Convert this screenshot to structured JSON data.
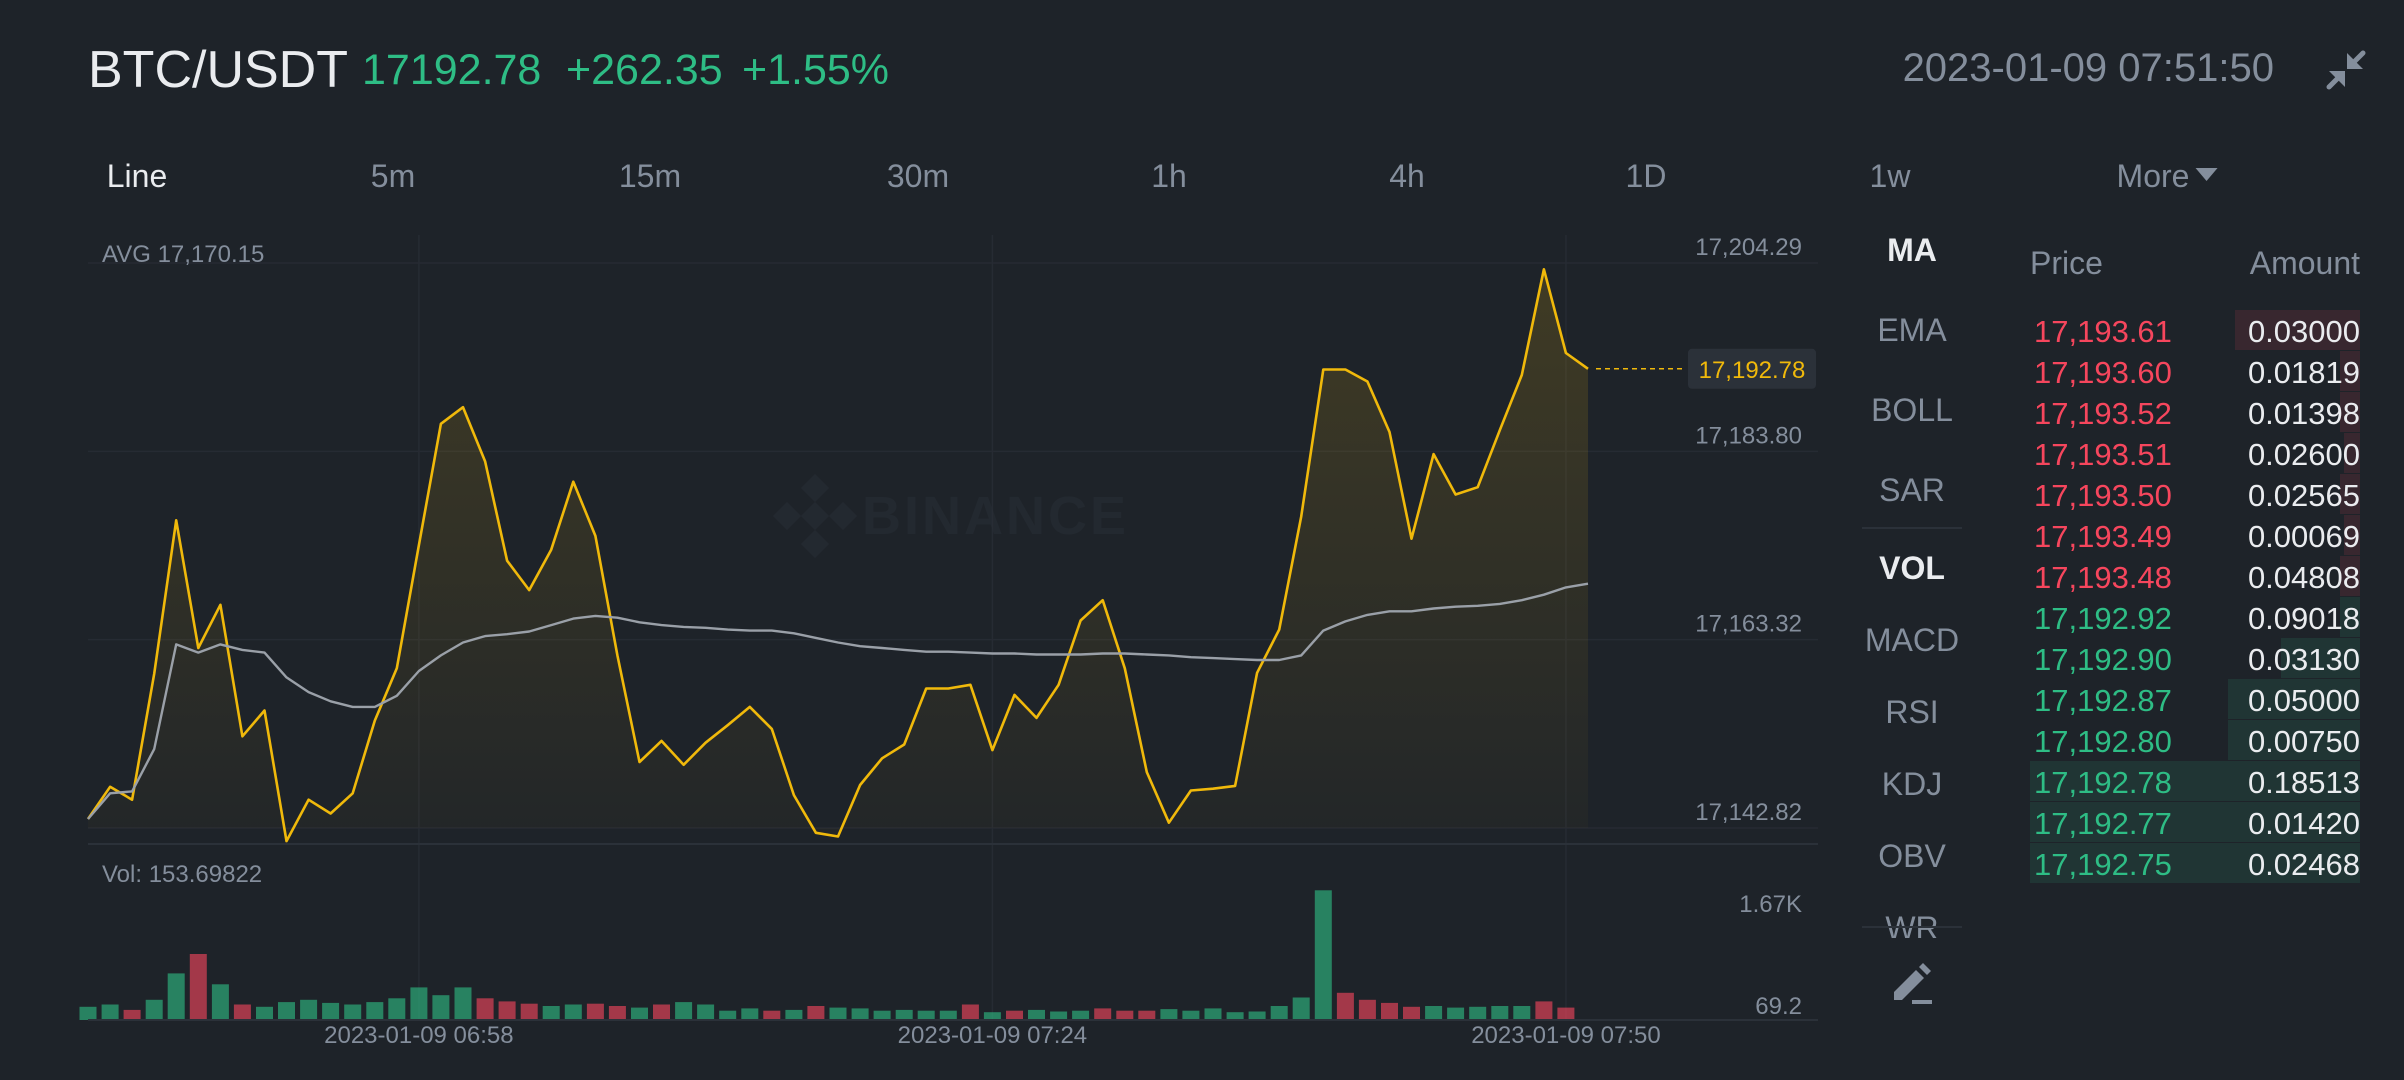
{
  "header": {
    "pair": "BTC/USDT",
    "last_price": "17192.78",
    "change_abs": "+262.35",
    "change_pct": "+1.55%",
    "timestamp": "2023-01-09 07:51:50",
    "collapse_icon": "collapse-arrows-icon"
  },
  "intervals": [
    "Line",
    "5m",
    "15m",
    "30m",
    "1h",
    "4h",
    "1D",
    "1w",
    "More"
  ],
  "active_interval": "Line",
  "indicators": {
    "main": [
      "MA",
      "EMA",
      "BOLL",
      "SAR"
    ],
    "sub": [
      "VOL",
      "MACD",
      "RSI",
      "KDJ",
      "OBV",
      "WR"
    ],
    "active_main": "MA",
    "active_sub": "VOL",
    "draw_icon": "pencil-icon"
  },
  "colors": {
    "up": "#2ebd85",
    "down": "#f6465d",
    "price_line": "#f0b90b",
    "avg_line": "#848e9c",
    "background": "#1e2329"
  },
  "watermark": "BINANCE",
  "order_book": {
    "headers": {
      "price": "Price",
      "amount": "Amount"
    },
    "asks": [
      {
        "price": "17,193.61",
        "amount": "0.03000",
        "depth": 0.38
      },
      {
        "price": "17,193.60",
        "amount": "0.01819",
        "depth": 0.06
      },
      {
        "price": "17,193.52",
        "amount": "0.01398",
        "depth": 0.06
      },
      {
        "price": "17,193.51",
        "amount": "0.02600",
        "depth": 0.05
      },
      {
        "price": "17,193.50",
        "amount": "0.02565",
        "depth": 0.06
      },
      {
        "price": "17,193.49",
        "amount": "0.00069",
        "depth": 0.05
      },
      {
        "price": "17,193.48",
        "amount": "0.04808",
        "depth": 0.06
      }
    ],
    "bids": [
      {
        "price": "17,192.92",
        "amount": "0.09018",
        "depth": 0.06
      },
      {
        "price": "17,192.90",
        "amount": "0.03130",
        "depth": 0.24
      },
      {
        "price": "17,192.87",
        "amount": "0.05000",
        "depth": 0.4
      },
      {
        "price": "17,192.80",
        "amount": "0.00750",
        "depth": 0.4
      },
      {
        "price": "17,192.78",
        "amount": "0.18513",
        "depth": 1.0
      },
      {
        "price": "17,192.77",
        "amount": "0.01420",
        "depth": 1.0
      },
      {
        "price": "17,192.75",
        "amount": "0.02468",
        "depth": 1.0
      }
    ]
  },
  "chart_data": [
    {
      "type": "line",
      "title": "",
      "xlabel": "",
      "ylabel": "",
      "avg_label": "AVG 17,170.15",
      "current_price_label": "17,192.78",
      "y_ticks": [
        "17,204.29",
        "17,183.80",
        "17,163.32",
        "17,142.82"
      ],
      "y_tick_values": [
        17204.29,
        17183.8,
        17163.32,
        17142.82
      ],
      "ylim": [
        17142.82,
        17204.29
      ],
      "x_tick_labels": [
        "2023-01-09 06:58",
        "2023-01-09 07:24",
        "2023-01-09 07:50"
      ],
      "x_tick_index": [
        15,
        41,
        67
      ],
      "grid": true,
      "series": [
        {
          "values": [
            17143.8,
            17147.3,
            17145.9,
            17159.6,
            17176.3,
            17162.4,
            17167.1,
            17152.8,
            17155.6,
            17141.4,
            17145.9,
            17144.4,
            17146.6,
            17154.5,
            17160.2,
            17173.6,
            17186.8,
            17188.6,
            17182.7,
            17171.9,
            17168.7,
            17173.1,
            17180.5,
            17174.6,
            17161.6,
            17150.0,
            17152.3,
            17149.7,
            17152.1,
            17154.0,
            17156.0,
            17153.6,
            17146.4,
            17142.3,
            17141.9,
            17147.5,
            17150.4,
            17151.9,
            17158.0,
            17158.0,
            17158.4,
            17151.3,
            17157.3,
            17154.8,
            17158.4,
            17165.4,
            17167.6,
            17160.2,
            17148.9,
            17143.4,
            17146.9,
            17147.1,
            17147.4,
            17159.7,
            17164.4,
            17176.7,
            17192.7,
            17192.7,
            17191.4,
            17185.9,
            17174.3,
            17183.5,
            17179.1,
            17179.9,
            17186.1,
            17192.1,
            17203.6,
            17194.5,
            17192.78
          ]
        },
        {
          "values": [
            17143.8,
            17146.6,
            17146.8,
            17151.4,
            17162.8,
            17161.9,
            17162.8,
            17162.2,
            17161.9,
            17159.2,
            17157.6,
            17156.6,
            17156.0,
            17156.0,
            17157.2,
            17159.9,
            17161.6,
            17163.0,
            17163.7,
            17163.9,
            17164.2,
            17164.9,
            17165.6,
            17165.9,
            17165.7,
            17165.2,
            17164.9,
            17164.7,
            17164.6,
            17164.4,
            17164.3,
            17164.3,
            17164.0,
            17163.5,
            17163.0,
            17162.6,
            17162.4,
            17162.2,
            17162.0,
            17162.0,
            17161.9,
            17161.8,
            17161.8,
            17161.7,
            17161.7,
            17161.7,
            17161.8,
            17161.8,
            17161.7,
            17161.6,
            17161.4,
            17161.3,
            17161.2,
            17161.1,
            17161.1,
            17161.6,
            17164.3,
            17165.3,
            17166.0,
            17166.4,
            17166.4,
            17166.7,
            17166.9,
            17167.0,
            17167.2,
            17167.6,
            17168.2,
            17169.0,
            17169.4
          ]
        }
      ]
    },
    {
      "type": "bar",
      "title": "",
      "vol_label": "Vol: 153.69822",
      "y_ticks": [
        "1.67K",
        "69.2"
      ],
      "y_tick_values": [
        1670,
        69.2
      ],
      "ylim": [
        0,
        1700
      ],
      "values": [
        170,
        200,
        130,
        260,
        600,
        850,
        460,
        200,
        170,
        230,
        260,
        220,
        200,
        230,
        280,
        420,
        320,
        420,
        280,
        240,
        210,
        180,
        200,
        210,
        180,
        160,
        200,
        230,
        200,
        120,
        150,
        120,
        130,
        180,
        160,
        150,
        120,
        130,
        120,
        120,
        200,
        100,
        120,
        130,
        110,
        120,
        150,
        120,
        120,
        140,
        120,
        150,
        100,
        110,
        180,
        290,
        1670,
        350,
        260,
        220,
        170,
        180,
        160,
        170,
        180,
        180,
        240,
        160
      ],
      "up": [
        true,
        true,
        false,
        true,
        true,
        false,
        true,
        false,
        true,
        true,
        true,
        true,
        true,
        true,
        true,
        true,
        true,
        true,
        false,
        false,
        false,
        true,
        true,
        false,
        false,
        true,
        false,
        true,
        true,
        true,
        true,
        false,
        true,
        false,
        true,
        true,
        true,
        true,
        true,
        true,
        false,
        true,
        false,
        true,
        true,
        true,
        false,
        false,
        false,
        true,
        true,
        true,
        true,
        true,
        true,
        true,
        true,
        false,
        false,
        false,
        false,
        true,
        true,
        true,
        true,
        true,
        false,
        false
      ],
      "color_up": "#2ebd85",
      "color_down": "#f6465d"
    }
  ]
}
